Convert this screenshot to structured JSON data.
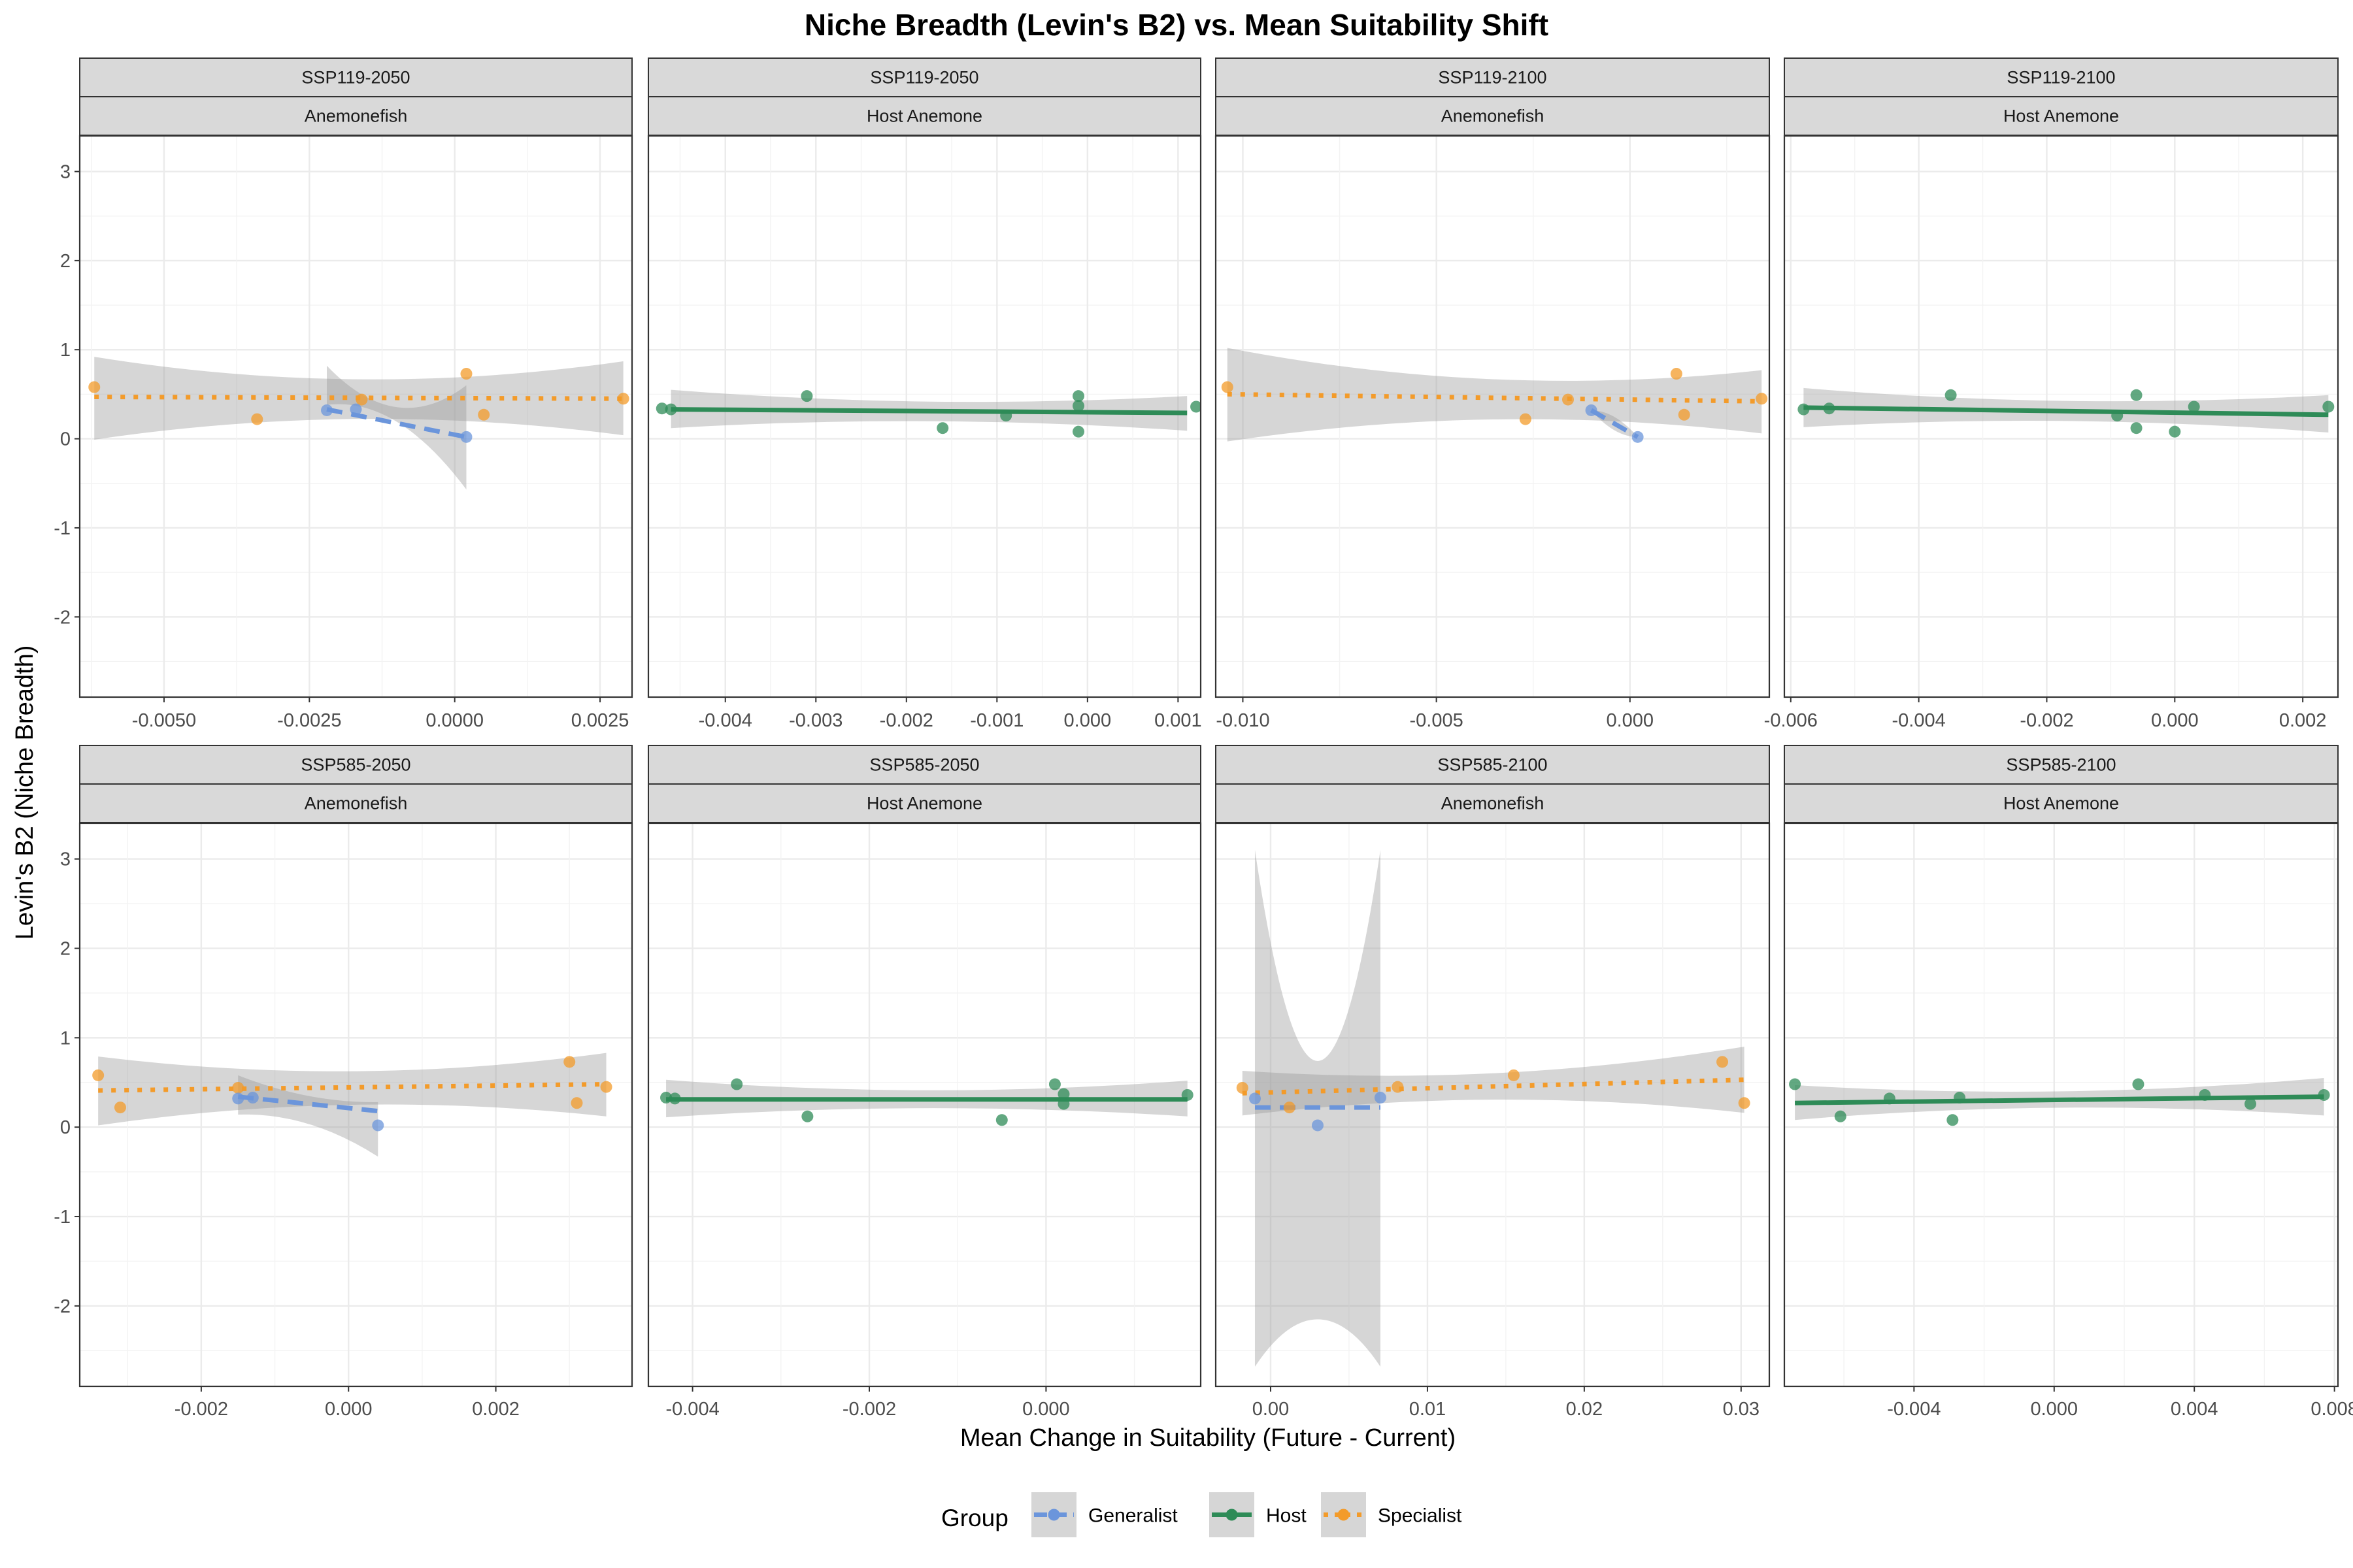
{
  "chart_data": {
    "type": "scatter",
    "title": "Niche Breadth (Levin's B2) vs. Mean Suitability Shift",
    "xlabel": "Mean Change in Suitability (Future - Current)",
    "ylabel": "Levin's B2 (Niche Breadth)",
    "ylim": [
      -2.9,
      3.4
    ],
    "yticks": [
      -2,
      -1,
      0,
      1,
      2,
      3
    ],
    "grid": true,
    "legend": {
      "title": "Group",
      "placement": "bottom",
      "entries": [
        {
          "name": "Generalist",
          "color": "#6B95DB",
          "linetype": "dashed"
        },
        {
          "name": "Host",
          "color": "#2E8B57",
          "linetype": "solid"
        },
        {
          "name": "Specialist",
          "color": "#F39B2A",
          "linetype": "dotted"
        }
      ]
    },
    "colors": {
      "Generalist": "#6B95DB",
      "Host": "#2E8B57",
      "Specialist": "#F39B2A",
      "band": "#999999"
    },
    "panels": [
      {
        "scenario": "SSP119-2050",
        "taxon": "Anemonefish",
        "xlim": [
          -0.00645,
          0.00305
        ],
        "xticks": [
          -0.005,
          -0.0025,
          0,
          0.0025
        ],
        "xticklabels": [
          "-0.0050",
          "-0.0025",
          "0.0000",
          "0.0025"
        ],
        "series": [
          {
            "name": "Specialist",
            "x": [
              -0.0062,
              -0.0034,
              -0.0016,
              0.0002,
              0.0005,
              0.0029
            ],
            "y": [
              0.58,
              0.22,
              0.44,
              0.73,
              0.27,
              0.45
            ],
            "fit": {
              "x": [
                -0.0062,
                0.0029
              ],
              "y": [
                0.47,
                0.45
              ],
              "se_lo": [
                -0.01,
                0.04
              ],
              "se_mid": [
                0.44,
                0.43
              ],
              "se_hi": [
                0.92,
                0.87
              ]
            }
          },
          {
            "name": "Generalist",
            "x": [
              -0.0022,
              -0.0017,
              0.0002
            ],
            "y": [
              0.32,
              0.33,
              0.02
            ],
            "fit": {
              "x": [
                -0.0022,
                0.0002
              ],
              "y": [
                0.33,
                0.02
              ],
              "se_lo": [
                0.38,
                -0.57
              ],
              "se_mid": [
                0.0,
                0.48
              ],
              "se_hi": [
                0.82,
                0.6
              ]
            }
          }
        ]
      },
      {
        "scenario": "SSP119-2050",
        "taxon": "Host Anemone",
        "xlim": [
          -0.00485,
          0.00125
        ],
        "xticks": [
          -0.004,
          -0.003,
          -0.002,
          -0.001,
          0,
          0.001
        ],
        "xticklabels": [
          "-0.004",
          "-0.003",
          "-0.002",
          "-0.001",
          "0.000",
          "0.001"
        ],
        "series": [
          {
            "name": "Host",
            "x": [
              -0.0047,
              -0.0046,
              -0.0031,
              -0.0016,
              -0.0009,
              -0.0001,
              -0.0001,
              -0.0001,
              0.0012
            ],
            "y": [
              0.34,
              0.33,
              0.48,
              0.12,
              0.26,
              0.48,
              0.37,
              0.08,
              0.36
            ],
            "fit": {
              "x": [
                -0.0046,
                0.0011
              ],
              "y": [
                0.33,
                0.29
              ],
              "se_lo": [
                0.12,
                0.09
              ],
              "se_mid": [
                0.32,
                0.29
              ],
              "se_hi": [
                0.55,
                0.48
              ]
            }
          }
        ]
      },
      {
        "scenario": "SSP119-2100",
        "taxon": "Anemonefish",
        "xlim": [
          -0.0107,
          0.0036
        ],
        "xticks": [
          -0.01,
          -0.005,
          0
        ],
        "xticklabels": [
          "-0.010",
          "-0.005",
          "0.000"
        ],
        "series": [
          {
            "name": "Specialist",
            "x": [
              -0.0104,
              -0.0027,
              -0.0016,
              0.0012,
              0.0014,
              0.0034
            ],
            "y": [
              0.58,
              0.22,
              0.44,
              0.73,
              0.27,
              0.45
            ],
            "fit": {
              "x": [
                -0.0104,
                0.0034
              ],
              "y": [
                0.5,
                0.42
              ],
              "se_lo": [
                -0.03,
                0.06
              ],
              "se_mid": [
                0.44,
                0.42
              ],
              "se_hi": [
                1.02,
                0.77
              ]
            }
          },
          {
            "name": "Generalist",
            "x": [
              -0.001,
              0.0002
            ],
            "y": [
              0.32,
              0.02
            ],
            "fit": {
              "x": [
                -0.001,
                0.0002
              ],
              "y": [
                0.32,
                0.02
              ],
              "se_lo": [
                0.32,
                0.02
              ],
              "se_mid": [
                0.32,
                0.02
              ],
              "se_hi": [
                0.32,
                0.02
              ]
            }
          }
        ]
      },
      {
        "scenario": "SSP119-2100",
        "taxon": "Host Anemone",
        "xlim": [
          -0.0061,
          0.00255
        ],
        "xticks": [
          -0.006,
          -0.004,
          -0.002,
          0,
          0.002
        ],
        "xticklabels": [
          "-0.006",
          "-0.004",
          "-0.002",
          "0.000",
          "0.002"
        ],
        "series": [
          {
            "name": "Host",
            "x": [
              -0.0058,
              -0.0054,
              -0.0035,
              -0.0009,
              -0.0006,
              -0.0006,
              0.0,
              0.0003,
              0.0024
            ],
            "y": [
              0.33,
              0.34,
              0.49,
              0.26,
              0.49,
              0.12,
              0.08,
              0.36,
              0.36
            ],
            "fit": {
              "x": [
                -0.0058,
                0.0024
              ],
              "y": [
                0.35,
                0.27
              ],
              "se_lo": [
                0.13,
                0.07
              ],
              "se_mid": [
                0.32,
                0.3
              ],
              "se_hi": [
                0.57,
                0.49
              ]
            }
          }
        ]
      },
      {
        "scenario": "SSP585-2050",
        "taxon": "Anemonefish",
        "xlim": [
          -0.00365,
          0.00385
        ],
        "xticks": [
          -0.002,
          0,
          0.002
        ],
        "xticklabels": [
          "-0.002",
          "0.000",
          "0.002"
        ],
        "series": [
          {
            "name": "Specialist",
            "x": [
              -0.0034,
              -0.0031,
              -0.0015,
              0.003,
              0.0031,
              0.0035
            ],
            "y": [
              0.58,
              0.22,
              0.44,
              0.73,
              0.27,
              0.45
            ],
            "fit": {
              "x": [
                -0.0034,
                0.0035
              ],
              "y": [
                0.41,
                0.48
              ],
              "se_lo": [
                0.02,
                0.12
              ],
              "se_mid": [
                0.44,
                0.43
              ],
              "se_hi": [
                0.79,
                0.83
              ]
            }
          },
          {
            "name": "Generalist",
            "x": [
              -0.0015,
              -0.0013,
              0.0004
            ],
            "y": [
              0.32,
              0.33,
              0.02
            ],
            "fit": {
              "x": [
                -0.0015,
                0.0004
              ],
              "y": [
                0.34,
                0.18
              ],
              "se_lo": [
                0.14,
                -0.33
              ],
              "se_mid": [
                0.27,
                0.17
              ],
              "se_hi": [
                0.58,
                0.28
              ]
            }
          }
        ]
      },
      {
        "scenario": "SSP585-2050",
        "taxon": "Host Anemone",
        "xlim": [
          -0.0045,
          0.00175
        ],
        "xticks": [
          -0.004,
          -0.002,
          0
        ],
        "xticklabels": [
          "-0.004",
          "-0.002",
          "0.000"
        ],
        "series": [
          {
            "name": "Host",
            "x": [
              -0.0043,
              -0.0042,
              -0.0035,
              -0.0027,
              -0.0005,
              0.0001,
              0.0002,
              0.0002,
              0.0016
            ],
            "y": [
              0.33,
              0.32,
              0.48,
              0.12,
              0.08,
              0.48,
              0.26,
              0.37,
              0.36
            ],
            "fit": {
              "x": [
                -0.0043,
                0.0016
              ],
              "y": [
                0.31,
                0.31
              ],
              "se_lo": [
                0.11,
                0.12
              ],
              "se_mid": [
                0.3,
                0.31
              ],
              "se_hi": [
                0.53,
                0.52
              ]
            }
          }
        ]
      },
      {
        "scenario": "SSP585-2100",
        "taxon": "Anemonefish",
        "xlim": [
          -0.0035,
          0.0318
        ],
        "xticks": [
          0,
          0.01,
          0.02,
          0.03
        ],
        "xticklabels": [
          "0.00",
          "0.01",
          "0.02",
          "0.03"
        ],
        "series": [
          {
            "name": "Specialist",
            "x": [
              -0.0018,
              0.0012,
              0.0081,
              0.0155,
              0.0288,
              0.0302
            ],
            "y": [
              0.44,
              0.22,
              0.45,
              0.58,
              0.73,
              0.27
            ],
            "fit": {
              "x": [
                -0.0018,
                0.0302
              ],
              "y": [
                0.38,
                0.53
              ],
              "se_lo": [
                0.13,
                0.16
              ],
              "se_mid": [
                0.44,
                0.47
              ],
              "se_hi": [
                0.63,
                0.9
              ]
            }
          },
          {
            "name": "Generalist",
            "x": [
              -0.001,
              0.003,
              0.007
            ],
            "y": [
              0.32,
              0.02,
              0.33
            ],
            "fit": {
              "x": [
                -0.001,
                0.007
              ],
              "y": [
                0.22,
                0.22
              ],
              "se_lo": [
                -2.68,
                -2.68
              ],
              "se_mid": [
                -1.62,
                -1.62
              ],
              "se_hi": [
                3.1,
                3.1
              ]
            }
          }
        ]
      },
      {
        "scenario": "SSP585-2100",
        "taxon": "Host Anemone",
        "xlim": [
          -0.0077,
          0.0081
        ],
        "xticks": [
          -0.004,
          0,
          0.004,
          0.008
        ],
        "xticklabels": [
          "-0.004",
          "0.000",
          "0.004",
          "0.008"
        ],
        "series": [
          {
            "name": "Host",
            "x": [
              -0.0074,
              -0.0061,
              -0.0047,
              -0.0029,
              -0.0027,
              0.0024,
              0.0043,
              0.0056,
              0.0077
            ],
            "y": [
              0.48,
              0.12,
              0.32,
              0.08,
              0.33,
              0.48,
              0.36,
              0.26,
              0.36
            ],
            "fit": {
              "x": [
                -0.0074,
                0.0077
              ],
              "y": [
                0.27,
                0.34
              ],
              "se_lo": [
                0.08,
                0.13
              ],
              "se_mid": [
                0.29,
                0.33
              ],
              "se_hi": [
                0.47,
                0.55
              ]
            }
          }
        ]
      }
    ]
  }
}
